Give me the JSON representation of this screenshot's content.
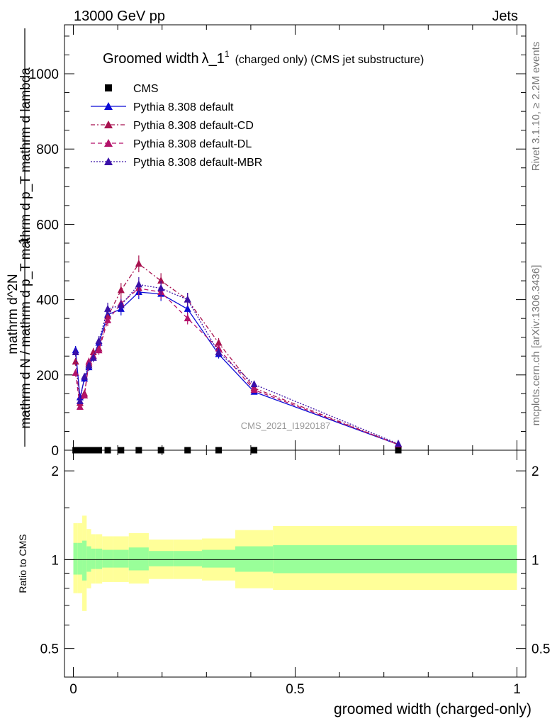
{
  "header": {
    "left": "13000 GeV pp",
    "right": "Jets"
  },
  "side_labels": {
    "rivet": "Rivet 3.1.10, ≥ 2.2M events",
    "mcplots": "mcplots.cern.ch [arXiv:1306.3436]"
  },
  "watermark": "CMS_2021_I1920187",
  "colors": {
    "cms": "#000000",
    "default": "#0b0bd6",
    "default_cd": "#a8124f",
    "default_dl": "#b4126a",
    "default_mbr": "#3a10a8",
    "band_inner": "#99ff99",
    "band_outer": "#ffff99"
  },
  "chart_data": [
    {
      "type": "line",
      "title_main": "Groomed width",
      "title_symbol": "λ_1",
      "title_sup": "1",
      "title_rest": "(charged only) (CMS jet substructure)",
      "xlabel": "groomed width (charged-only)",
      "ylabel_top": "1",
      "ylabel_bottom": "mathrm d N / mathrm d p_T mathrm d p_T mathrm d lambda",
      "ylabel_top_num": "mathrm d^2N",
      "xlim": [
        -0.02,
        1.02
      ],
      "ylim": [
        0,
        1130
      ],
      "yticks": [
        0,
        200,
        400,
        600,
        800,
        1000
      ],
      "legend_position": "top-left",
      "x": [
        0.005,
        0.015,
        0.025,
        0.035,
        0.045,
        0.0575,
        0.0775,
        0.1075,
        0.1475,
        0.1975,
        0.2575,
        0.3275,
        0.4075,
        0.7325
      ],
      "series": [
        {
          "name": "CMS",
          "style": "square",
          "values": [
            0,
            0,
            0,
            0,
            0,
            0,
            0,
            0,
            0,
            0,
            0,
            0,
            0,
            0
          ]
        },
        {
          "name": "Pythia 8.308 default",
          "style": "solid",
          "color_key": "default",
          "values": [
            265,
            140,
            190,
            220,
            250,
            285,
            360,
            375,
            420,
            415,
            375,
            255,
            155,
            15
          ]
        },
        {
          "name": "Pythia 8.308 default-CD",
          "style": "dashdot",
          "color_key": "default_cd",
          "values": [
            235,
            125,
            150,
            230,
            260,
            270,
            355,
            425,
            495,
            450,
            400,
            285,
            165,
            15
          ]
        },
        {
          "name": "Pythia 8.308 default-DL",
          "style": "dashed",
          "color_key": "default_dl",
          "values": [
            205,
            115,
            145,
            235,
            250,
            265,
            345,
            390,
            430,
            420,
            350,
            270,
            160,
            15
          ]
        },
        {
          "name": "Pythia 8.308 default-MBR",
          "style": "dotted",
          "color_key": "default_mbr",
          "values": [
            260,
            130,
            195,
            225,
            245,
            290,
            375,
            385,
            440,
            430,
            400,
            260,
            175,
            17
          ]
        }
      ]
    },
    {
      "type": "area",
      "ylabel": "Ratio to CMS",
      "xlim": [
        -0.02,
        1.02
      ],
      "ylim": [
        0.4,
        2.35
      ],
      "log_y": true,
      "yticks": [
        0.5,
        1,
        2
      ],
      "xticks": [
        0,
        0.5,
        1
      ],
      "bin_edges": [
        0,
        0.01,
        0.02,
        0.03,
        0.04,
        0.05,
        0.065,
        0.09,
        0.125,
        0.17,
        0.225,
        0.29,
        0.365,
        0.45,
        1.0
      ],
      "band_outer_up": [
        1.33,
        1.33,
        1.41,
        1.27,
        1.22,
        1.22,
        1.2,
        1.2,
        1.23,
        1.17,
        1.17,
        1.18,
        1.26,
        1.3
      ],
      "band_outer_down": [
        0.77,
        0.77,
        0.67,
        0.8,
        0.83,
        0.83,
        0.84,
        0.84,
        0.83,
        0.86,
        0.86,
        0.85,
        0.8,
        0.79
      ],
      "band_inner_up": [
        1.14,
        1.14,
        1.16,
        1.11,
        1.09,
        1.09,
        1.08,
        1.08,
        1.1,
        1.07,
        1.07,
        1.08,
        1.11,
        1.12
      ],
      "band_inner_down": [
        0.89,
        0.89,
        0.85,
        0.91,
        0.93,
        0.93,
        0.94,
        0.94,
        0.92,
        0.95,
        0.95,
        0.94,
        0.91,
        0.9
      ]
    }
  ]
}
